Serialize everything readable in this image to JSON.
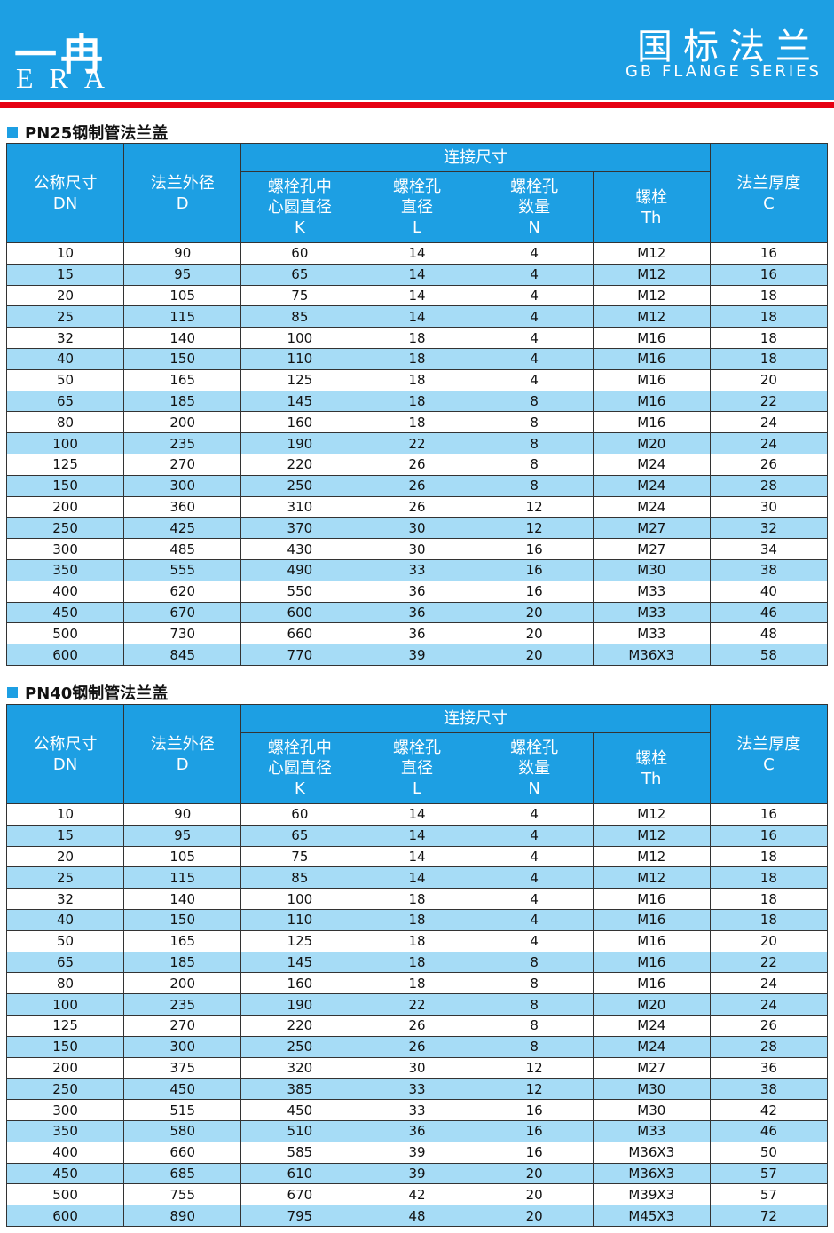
{
  "header": {
    "logo_cn": "一冉",
    "logo_en": "ERA",
    "title": "国标法兰",
    "subtitle": "GB FLANGE SERIES"
  },
  "tables": [
    {
      "title": "PN25钢制管法兰盖",
      "group_header": "连接尺寸",
      "columns": [
        [
          "公称尺寸",
          "DN"
        ],
        [
          "法兰外径",
          "D"
        ],
        [
          "螺栓孔中",
          "心圆直径",
          "K"
        ],
        [
          "螺栓孔",
          "直径",
          "L"
        ],
        [
          "螺栓孔",
          "数量",
          "N"
        ],
        [
          "螺栓",
          "Th"
        ],
        [
          "法兰厚度",
          "C"
        ]
      ],
      "rows": [
        [
          10,
          90,
          60,
          14,
          4,
          "M12",
          16
        ],
        [
          15,
          95,
          65,
          14,
          4,
          "M12",
          16
        ],
        [
          20,
          105,
          75,
          14,
          4,
          "M12",
          18
        ],
        [
          25,
          115,
          85,
          14,
          4,
          "M12",
          18
        ],
        [
          32,
          140,
          100,
          18,
          4,
          "M16",
          18
        ],
        [
          40,
          150,
          110,
          18,
          4,
          "M16",
          18
        ],
        [
          50,
          165,
          125,
          18,
          4,
          "M16",
          20
        ],
        [
          65,
          185,
          145,
          18,
          8,
          "M16",
          22
        ],
        [
          80,
          200,
          160,
          18,
          8,
          "M16",
          24
        ],
        [
          100,
          235,
          190,
          22,
          8,
          "M20",
          24
        ],
        [
          125,
          270,
          220,
          26,
          8,
          "M24",
          26
        ],
        [
          150,
          300,
          250,
          26,
          8,
          "M24",
          28
        ],
        [
          200,
          360,
          310,
          26,
          12,
          "M24",
          30
        ],
        [
          250,
          425,
          370,
          30,
          12,
          "M27",
          32
        ],
        [
          300,
          485,
          430,
          30,
          16,
          "M27",
          34
        ],
        [
          350,
          555,
          490,
          33,
          16,
          "M30",
          38
        ],
        [
          400,
          620,
          550,
          36,
          16,
          "M33",
          40
        ],
        [
          450,
          670,
          600,
          36,
          20,
          "M33",
          46
        ],
        [
          500,
          730,
          660,
          36,
          20,
          "M33",
          48
        ],
        [
          600,
          845,
          770,
          39,
          20,
          "M36X3",
          58
        ]
      ]
    },
    {
      "title": "PN40钢制管法兰盖",
      "group_header": "连接尺寸",
      "columns": [
        [
          "公称尺寸",
          "DN"
        ],
        [
          "法兰外径",
          "D"
        ],
        [
          "螺栓孔中",
          "心圆直径",
          "K"
        ],
        [
          "螺栓孔",
          "直径",
          "L"
        ],
        [
          "螺栓孔",
          "数量",
          "N"
        ],
        [
          "螺栓",
          "Th"
        ],
        [
          "法兰厚度",
          "C"
        ]
      ],
      "rows": [
        [
          10,
          90,
          60,
          14,
          4,
          "M12",
          16
        ],
        [
          15,
          95,
          65,
          14,
          4,
          "M12",
          16
        ],
        [
          20,
          105,
          75,
          14,
          4,
          "M12",
          18
        ],
        [
          25,
          115,
          85,
          14,
          4,
          "M12",
          18
        ],
        [
          32,
          140,
          100,
          18,
          4,
          "M16",
          18
        ],
        [
          40,
          150,
          110,
          18,
          4,
          "M16",
          18
        ],
        [
          50,
          165,
          125,
          18,
          4,
          "M16",
          20
        ],
        [
          65,
          185,
          145,
          18,
          8,
          "M16",
          22
        ],
        [
          80,
          200,
          160,
          18,
          8,
          "M16",
          24
        ],
        [
          100,
          235,
          190,
          22,
          8,
          "M20",
          24
        ],
        [
          125,
          270,
          220,
          26,
          8,
          "M24",
          26
        ],
        [
          150,
          300,
          250,
          26,
          8,
          "M24",
          28
        ],
        [
          200,
          375,
          320,
          30,
          12,
          "M27",
          36
        ],
        [
          250,
          450,
          385,
          33,
          12,
          "M30",
          38
        ],
        [
          300,
          515,
          450,
          33,
          16,
          "M30",
          42
        ],
        [
          350,
          580,
          510,
          36,
          16,
          "M33",
          46
        ],
        [
          400,
          660,
          585,
          39,
          16,
          "M36X3",
          50
        ],
        [
          450,
          685,
          610,
          39,
          20,
          "M36X3",
          57
        ],
        [
          500,
          755,
          670,
          42,
          20,
          "M39X3",
          57
        ],
        [
          600,
          890,
          795,
          48,
          20,
          "M45X3",
          72
        ]
      ]
    }
  ]
}
